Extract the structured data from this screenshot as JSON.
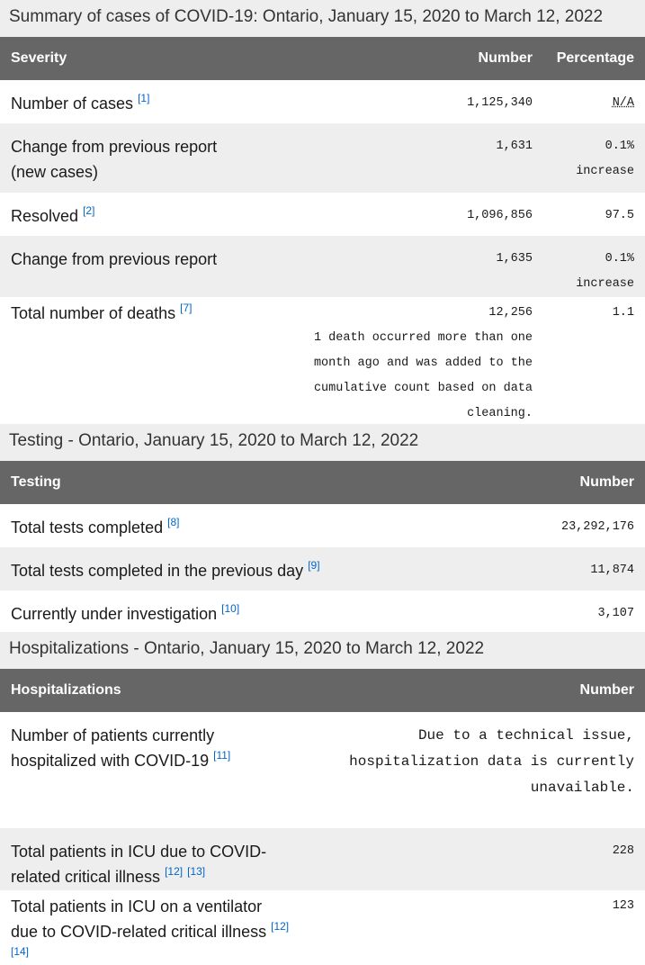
{
  "summary": {
    "caption": "Summary of cases of COVID-19: Ontario, January 15, 2020 to March 12, 2022",
    "headers": [
      "Severity",
      "Number",
      "Percentage"
    ],
    "rows": [
      {
        "label": "Number of cases",
        "refs": "[1]",
        "number": "1,125,340",
        "percentage": "N/A"
      },
      {
        "label": "Change from previous report",
        "label2": "(new cases)",
        "number": "1,631",
        "percentage": "0.1%",
        "percentage2": "increase"
      },
      {
        "label": "Resolved",
        "refs": "[2]",
        "number": "1,096,856",
        "percentage": "97.5"
      },
      {
        "label": "Change from previous report",
        "number": "1,635",
        "percentage": "0.1%",
        "percentage2": "increase"
      },
      {
        "label": "Total number of deaths",
        "refs": "[7]",
        "number": "12,256",
        "note": [
          "1 death occurred more than one",
          "month ago and was added to the",
          "cumulative count based on data",
          "cleaning."
        ],
        "percentage": "1.1"
      }
    ]
  },
  "testing": {
    "caption": "Testing - Ontario, January 15, 2020 to March 12, 2022",
    "headers": [
      "Testing",
      "Number"
    ],
    "rows": [
      {
        "label": "Total tests completed",
        "refs": "[8]",
        "number": "23,292,176"
      },
      {
        "label": "Total tests completed in the previous day",
        "refs": "[9]",
        "number": "11,874"
      },
      {
        "label": "Currently under investigation",
        "refs": "[10]",
        "number": "3,107"
      }
    ]
  },
  "hosp": {
    "caption": "Hospitalizations - Ontario, January 15, 2020 to March 12, 2022",
    "headers": [
      "Hospitalizations",
      "Number"
    ],
    "rows": [
      {
        "label": "Number of patients currently",
        "label2": "hospitalized with COVID-19",
        "refs": "[11]",
        "number": [
          "Due to a technical issue,",
          "hospitalization data is currently",
          "unavailable."
        ]
      },
      {
        "label": "Total patients in ICU due to COVID-",
        "label2": "related critical illness",
        "refs": "[12]",
        "refs2": "[13]",
        "number": "228"
      },
      {
        "label": "Total patients in ICU on a ventilator",
        "label2": "due to COVID-related critical illness",
        "refs": "[12]",
        "refs2": "[14]",
        "number": "123"
      }
    ]
  }
}
